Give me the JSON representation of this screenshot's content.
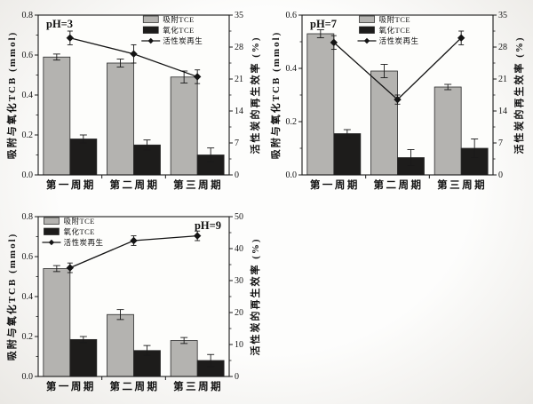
{
  "colors": {
    "adsorbed_bar": "#b4b3b0",
    "oxidized_bar": "#1d1c1b",
    "line": "#141414",
    "axis": "#1a1a1a",
    "plot_bg": "#fdfdfb"
  },
  "legend": {
    "items": [
      {
        "label": "吸附TCE",
        "type": "bar",
        "color_key": "adsorbed_bar"
      },
      {
        "label": "氧化TCE",
        "type": "bar",
        "color_key": "oxidized_bar"
      },
      {
        "label": "活性炭再生",
        "type": "line",
        "color_key": "line"
      }
    ]
  },
  "chart_data": [
    {
      "id": "ph3",
      "type": "bar+line",
      "title": "pH=3",
      "categories": [
        "第一周期",
        "第二周期",
        "第三周期"
      ],
      "left_axis": {
        "label": "吸附与氧化TCB (mmol)",
        "min": 0,
        "max": 0.8,
        "tick_labels": [
          "0.0",
          "0.2",
          "0.4",
          "0.6",
          "0.8"
        ]
      },
      "right_axis": {
        "label": "活性炭的再生效率 (%)",
        "min": 0,
        "max": 35,
        "tick_labels": [
          "0",
          "7",
          "14",
          "21",
          "28",
          "35"
        ]
      },
      "series": [
        {
          "name": "吸附TCE",
          "type": "bar",
          "axis": "left",
          "values": [
            0.59,
            0.56,
            0.49
          ],
          "errors": [
            0.015,
            0.02,
            0.03
          ]
        },
        {
          "name": "氧化TCE",
          "type": "bar",
          "axis": "left",
          "values": [
            0.18,
            0.15,
            0.1
          ],
          "errors": [
            0.02,
            0.025,
            0.035
          ]
        },
        {
          "name": "活性炭再生",
          "type": "line",
          "axis": "right",
          "values": [
            30,
            26.5,
            21.5
          ],
          "errors": [
            1.5,
            2,
            1.5
          ]
        }
      ],
      "layout": {
        "title_pos": "top-left",
        "legend_pos": "top-right",
        "legend_x_frac": 0.55,
        "grid": false
      }
    },
    {
      "id": "ph7",
      "type": "bar+line",
      "title": "pH=7",
      "categories": [
        "第一周期",
        "第二周期",
        "第三周期"
      ],
      "left_axis": {
        "label": "吸附与氧化TCB (mmol)",
        "min": 0,
        "max": 0.6,
        "tick_labels": [
          "0.0",
          "0.2",
          "0.4",
          "0.6"
        ]
      },
      "right_axis": {
        "label": "活性炭的再生效率 (%)",
        "min": 0,
        "max": 35,
        "tick_labels": [
          "0",
          "7",
          "14",
          "21",
          "28",
          "35"
        ]
      },
      "series": [
        {
          "name": "吸附TCE",
          "type": "bar",
          "axis": "left",
          "values": [
            0.53,
            0.39,
            0.33
          ],
          "errors": [
            0.015,
            0.025,
            0.01
          ]
        },
        {
          "name": "氧化TCE",
          "type": "bar",
          "axis": "left",
          "values": [
            0.155,
            0.065,
            0.1
          ],
          "errors": [
            0.015,
            0.03,
            0.035
          ]
        },
        {
          "name": "活性炭再生",
          "type": "line",
          "axis": "right",
          "values": [
            29,
            16.5,
            30
          ],
          "errors": [
            1.5,
            1,
            1.5
          ]
        }
      ],
      "layout": {
        "title_pos": "top-left",
        "legend_pos": "top-center",
        "legend_x_frac": 0.3,
        "grid": false
      }
    },
    {
      "id": "ph9",
      "type": "bar+line",
      "title": "pH=9",
      "categories": [
        "第一周期",
        "第二周期",
        "第三周期"
      ],
      "left_axis": {
        "label": "吸附与氧化TCB (mmol)",
        "min": 0,
        "max": 0.8,
        "tick_labels": [
          "0.0",
          "0.2",
          "0.4",
          "0.6",
          "0.8"
        ]
      },
      "right_axis": {
        "label": "活性炭的再生效率 (%)",
        "min": 0,
        "max": 50,
        "tick_labels": [
          "0",
          "10",
          "20",
          "30",
          "40",
          "50"
        ]
      },
      "series": [
        {
          "name": "吸附TCE",
          "type": "bar",
          "axis": "left",
          "values": [
            0.54,
            0.31,
            0.18
          ],
          "errors": [
            0.015,
            0.025,
            0.015
          ]
        },
        {
          "name": "氧化TCE",
          "type": "bar",
          "axis": "left",
          "values": [
            0.185,
            0.13,
            0.08
          ],
          "errors": [
            0.015,
            0.025,
            0.03
          ]
        },
        {
          "name": "活性炭再生",
          "type": "line",
          "axis": "right",
          "values": [
            34,
            42.5,
            44
          ],
          "errors": [
            1.5,
            1.5,
            1.5
          ]
        }
      ],
      "layout": {
        "title_pos": "top-right",
        "legend_pos": "top-left",
        "legend_x_frac": 0.03,
        "grid": false
      }
    }
  ]
}
